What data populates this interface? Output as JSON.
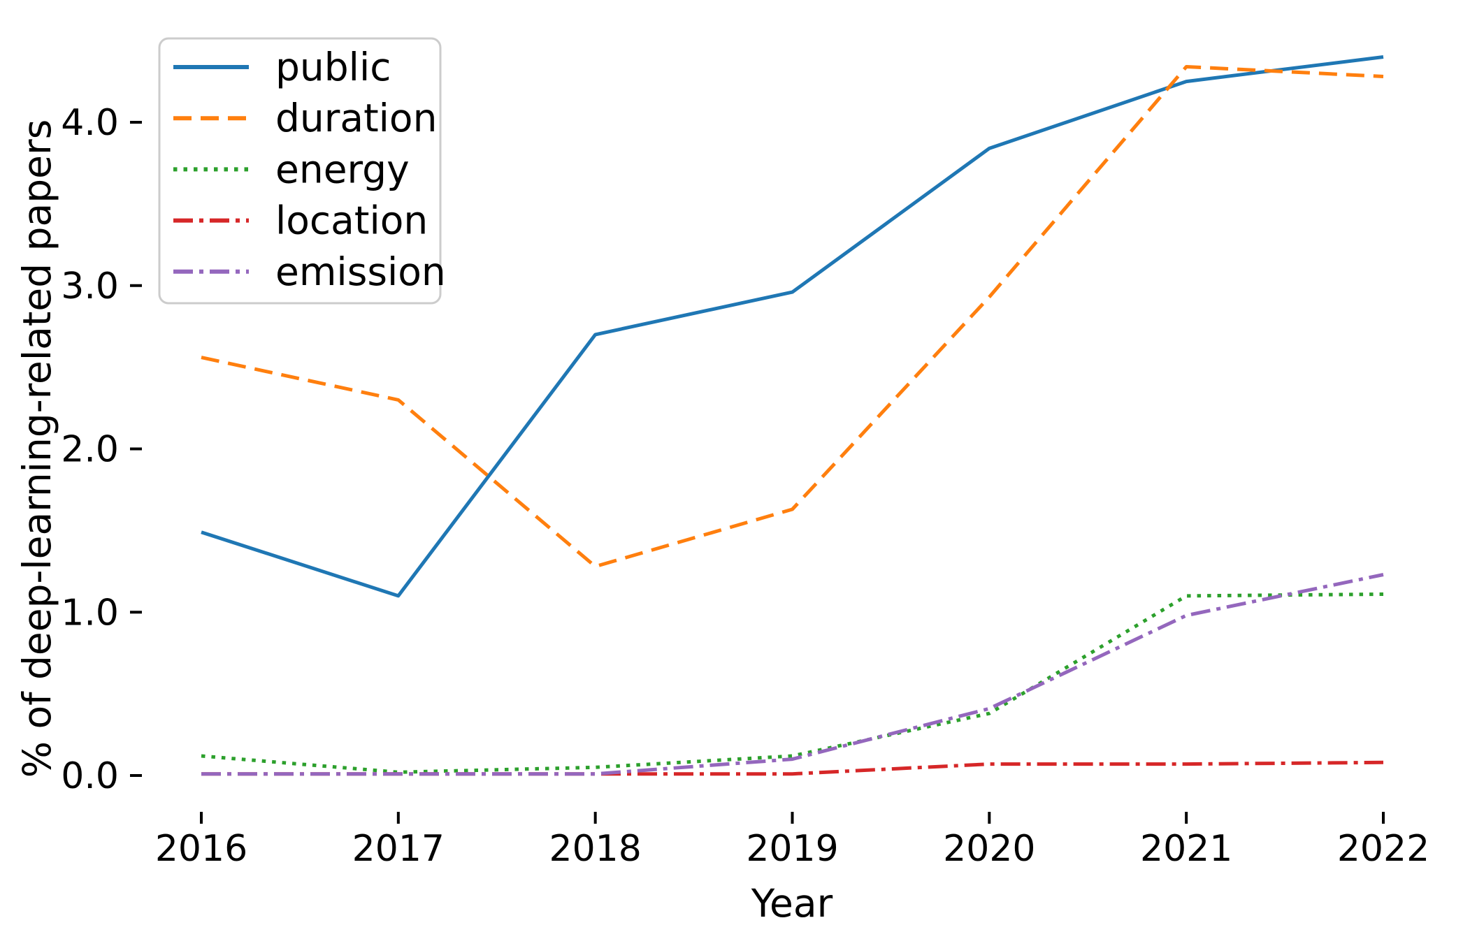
{
  "chart_data": {
    "type": "line",
    "title": "",
    "xlabel": "Year",
    "ylabel": "% of deep-learning-related papers",
    "x": [
      2016,
      2017,
      2018,
      2019,
      2020,
      2021,
      2022
    ],
    "xtick_labels": [
      "2016",
      "2017",
      "2018",
      "2019",
      "2020",
      "2021",
      "2022"
    ],
    "ytick_values": [
      0.0,
      1.0,
      2.0,
      3.0,
      4.0
    ],
    "ytick_labels": [
      "0.0",
      "1.0",
      "2.0",
      "3.0",
      "4.0"
    ],
    "ylim": [
      -0.2,
      4.62
    ],
    "xlim": [
      2015.7,
      2022.3
    ],
    "grid": false,
    "legend_position": "upper left",
    "series": [
      {
        "name": "public",
        "color": "#1f77b4",
        "linestyle": "solid",
        "values": [
          1.49,
          1.1,
          2.7,
          2.96,
          3.84,
          4.25,
          4.4
        ]
      },
      {
        "name": "duration",
        "color": "#ff7f0e",
        "linestyle": "dashed",
        "values": [
          2.56,
          2.3,
          1.28,
          1.63,
          2.93,
          4.34,
          4.28
        ]
      },
      {
        "name": "energy",
        "color": "#2ca02c",
        "linestyle": "dotted",
        "values": [
          0.12,
          0.02,
          0.05,
          0.12,
          0.38,
          1.1,
          1.11
        ]
      },
      {
        "name": "location",
        "color": "#d62728",
        "linestyle": "dashdot",
        "values": [
          0.01,
          0.01,
          0.01,
          0.01,
          0.07,
          0.07,
          0.08
        ]
      },
      {
        "name": "emission",
        "color": "#9467bd",
        "linestyle": "dashdot",
        "values": [
          0.01,
          0.01,
          0.01,
          0.1,
          0.41,
          0.98,
          1.23
        ]
      }
    ]
  }
}
